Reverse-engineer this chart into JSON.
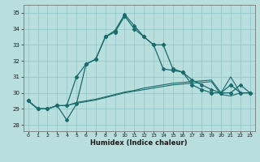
{
  "xlabel": "Humidex (Indice chaleur)",
  "xlim": [
    -0.5,
    23.5
  ],
  "ylim": [
    27.6,
    35.5
  ],
  "yticks": [
    28,
    29,
    30,
    31,
    32,
    33,
    34,
    35
  ],
  "xticks": [
    0,
    1,
    2,
    3,
    4,
    5,
    6,
    7,
    8,
    9,
    10,
    11,
    12,
    13,
    14,
    15,
    16,
    17,
    18,
    19,
    20,
    21,
    22,
    23
  ],
  "bg_color": "#b8dede",
  "grid_color": "#90c4c4",
  "line_color": "#1a6b6b",
  "line1_y": [
    29.5,
    29.0,
    29.0,
    29.2,
    29.2,
    31.0,
    31.8,
    32.1,
    33.5,
    33.8,
    34.8,
    34.0,
    33.5,
    33.0,
    33.0,
    31.5,
    31.3,
    30.5,
    30.2,
    30.0,
    30.0,
    30.5,
    30.0,
    30.0
  ],
  "line2_y": [
    29.5,
    29.0,
    29.0,
    29.2,
    28.3,
    29.3,
    31.8,
    32.1,
    33.5,
    33.9,
    34.9,
    34.2,
    33.5,
    33.0,
    31.5,
    31.4,
    31.3,
    30.8,
    30.5,
    30.2,
    30.0,
    30.0,
    30.5,
    30.0
  ],
  "line3_y": [
    29.5,
    29.0,
    29.0,
    29.2,
    29.2,
    29.35,
    29.45,
    29.55,
    29.7,
    29.85,
    30.0,
    30.1,
    30.2,
    30.3,
    30.4,
    30.5,
    30.55,
    30.6,
    30.65,
    30.7,
    29.9,
    29.8,
    30.0,
    30.0
  ],
  "line4_y": [
    29.5,
    29.0,
    29.0,
    29.2,
    29.2,
    29.4,
    29.5,
    29.6,
    29.75,
    29.9,
    30.05,
    30.15,
    30.3,
    30.4,
    30.5,
    30.6,
    30.65,
    30.7,
    30.75,
    30.8,
    30.0,
    31.0,
    30.0,
    30.0
  ]
}
